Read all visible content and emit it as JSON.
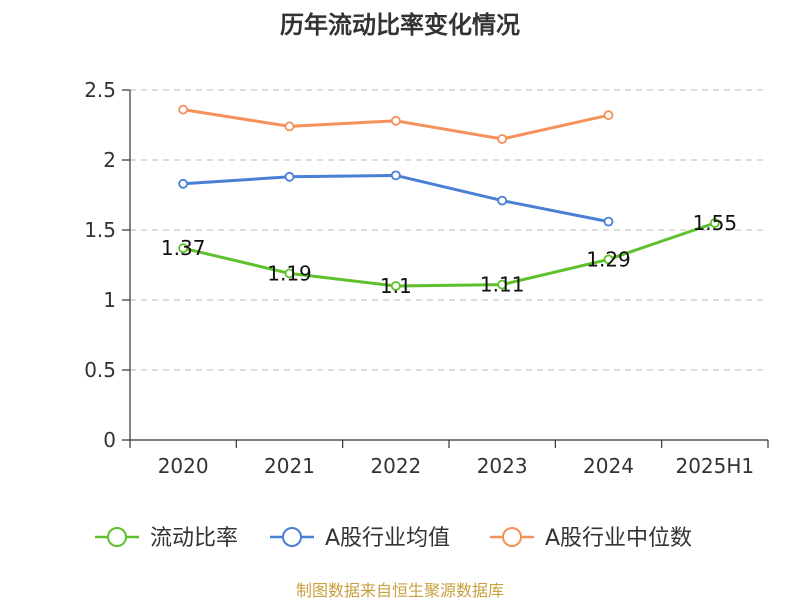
{
  "chart_data": {
    "type": "line",
    "title": "历年流动比率变化情况",
    "xlabel": "",
    "ylabel": "",
    "categories": [
      "2020",
      "2021",
      "2022",
      "2023",
      "2024",
      "2025H1"
    ],
    "ylim": [
      0,
      2.5
    ],
    "yticks": [
      "0",
      "0.5",
      "1",
      "1.5",
      "2",
      "2.5"
    ],
    "grid": true,
    "legend_position": "bottom",
    "series": [
      {
        "name": "流动比率",
        "color": "#5ec02a",
        "values": [
          1.37,
          1.19,
          1.1,
          1.11,
          1.29,
          1.55
        ],
        "labels": [
          "1.37",
          "1.19",
          "1.1",
          "1.11",
          "1.29",
          "1.55"
        ],
        "show_labels": true
      },
      {
        "name": "A股行业均值",
        "color": "#4a7fd6",
        "values": [
          1.83,
          1.88,
          1.89,
          1.71,
          1.56,
          null
        ],
        "show_labels": false
      },
      {
        "name": "A股行业中位数",
        "color": "#f5915a",
        "values": [
          2.36,
          2.24,
          2.28,
          2.15,
          2.32,
          null
        ],
        "show_labels": false
      }
    ]
  },
  "source_note": "制图数据来自恒生聚源数据库"
}
